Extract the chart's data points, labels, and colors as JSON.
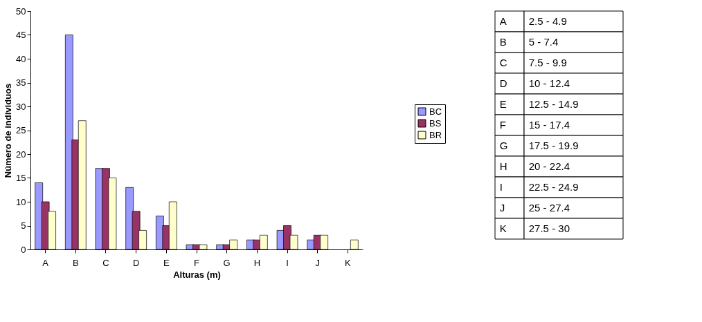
{
  "chart_data": [
    {
      "type": "bar",
      "xlabel": "Alturas (m)",
      "ylabel": "Número de individuos",
      "categories": [
        "A",
        "B",
        "C",
        "D",
        "E",
        "F",
        "G",
        "H",
        "I",
        "J",
        "K"
      ],
      "series": [
        {
          "name": "BC",
          "color": "#9999ff",
          "values": [
            14,
            45,
            17,
            13,
            7,
            1,
            1,
            2,
            4,
            2,
            null
          ]
        },
        {
          "name": "BS",
          "color": "#993366",
          "values": [
            10,
            23,
            17,
            8,
            5,
            1,
            1,
            2,
            5,
            3,
            null
          ]
        },
        {
          "name": "BR",
          "color": "#ffffcc",
          "values": [
            8,
            27,
            15,
            4,
            10,
            1,
            2,
            3,
            3,
            3,
            2
          ]
        }
      ],
      "ylim": [
        0,
        50
      ],
      "yticks": [
        0,
        5,
        10,
        15,
        20,
        25,
        30,
        35,
        40,
        45,
        50
      ],
      "grid": false,
      "legend": "right"
    },
    {
      "type": "other",
      "annotations": [
        "A",
        "2.5 - 4.9",
        "B",
        "5 - 7.4",
        "C",
        "7.5 - 9.9",
        "D",
        "10 - 12.4",
        "E",
        "12.5 - 14.9",
        "F",
        "15 - 17.4",
        "G",
        "17.5 - 19.9",
        "H",
        "20 - 22.4",
        "I",
        "22.5 - 24.9",
        "J",
        "25 - 27.4",
        "K",
        "27.5 - 30"
      ]
    }
  ]
}
